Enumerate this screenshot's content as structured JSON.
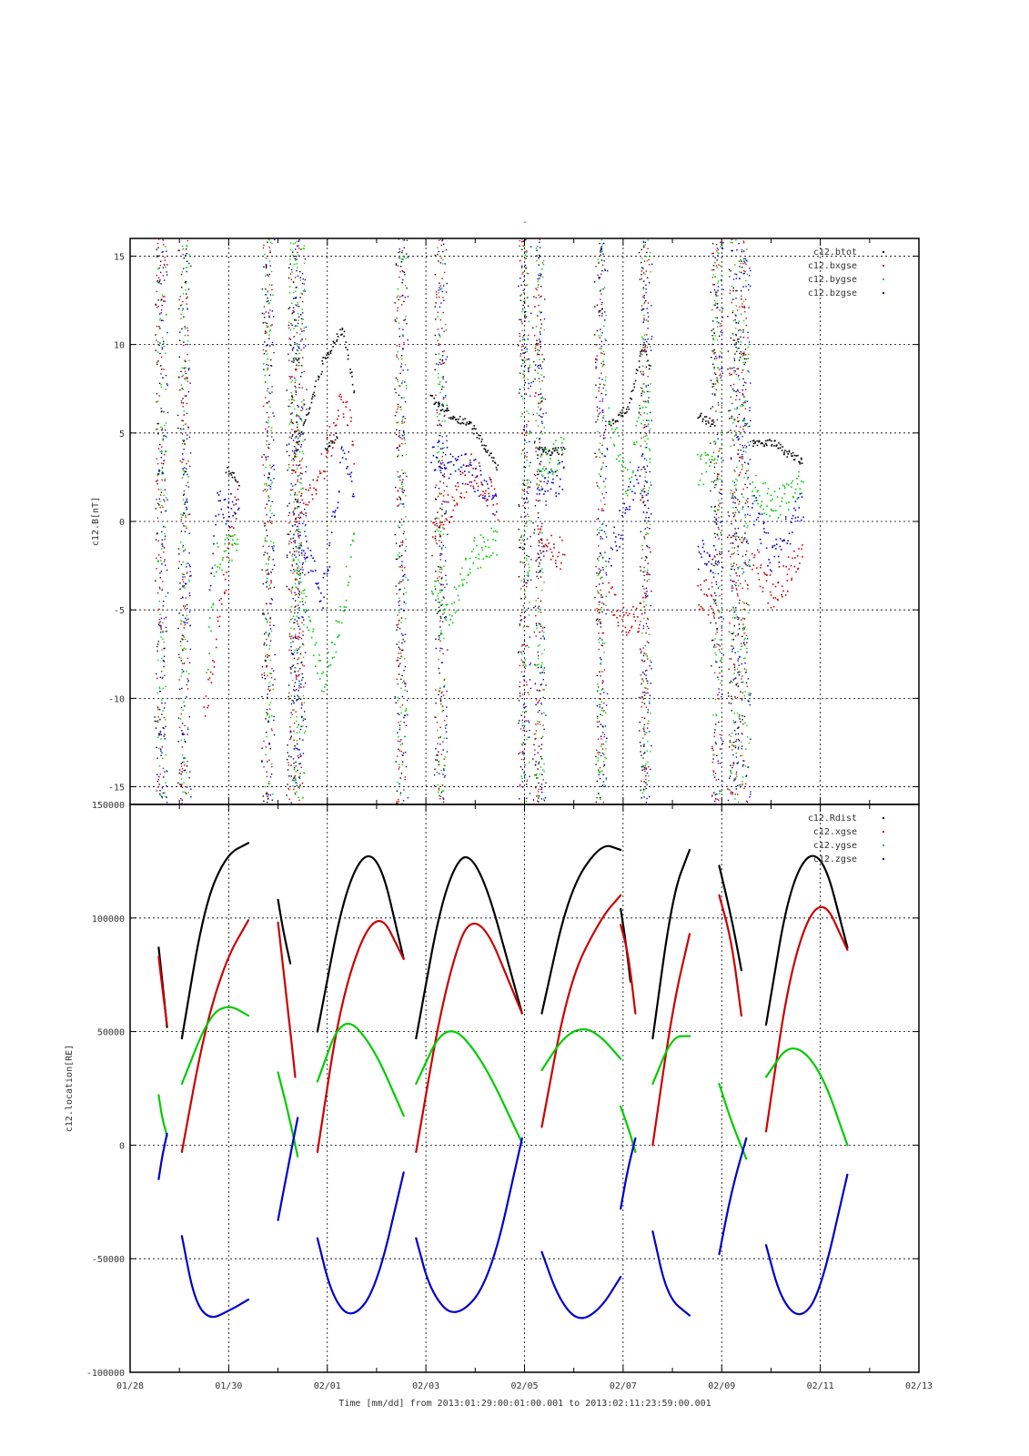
{
  "figure": {
    "title": "-",
    "xlabel": "Time [mm/dd]  from 2013:01:29:00:01:00.001  to  2013:02:11:23:59:00.001",
    "x_tick_labels": [
      "01/28",
      "01/30",
      "02/01",
      "02/03",
      "02/05",
      "02/07",
      "02/09",
      "02/11",
      "02/13"
    ]
  },
  "chart_data": [
    {
      "type": "scatter",
      "ylabel": "c12.B[nT]",
      "xlim": [
        0,
        16
      ],
      "ylim": [
        -16,
        16
      ],
      "x_unit": "days since 01/28 00:00",
      "y_ticks": [
        15,
        10,
        5,
        0,
        -5,
        -10,
        -15
      ],
      "grid": true,
      "legend_placement": "top-right",
      "series": [
        {
          "name": "c12.btot",
          "color": "#000000",
          "segments": [
            {
              "x": [
                1.95,
                2.2
              ],
              "y": [
                3,
                2.2
              ]
            },
            {
              "x": [
                3.3,
                3.9,
                4.3,
                4.55
              ],
              "y": [
                3.5,
                9,
                11,
                7
              ]
            },
            {
              "x": [
                3.95,
                4.2
              ],
              "y": [
                4,
                5
              ]
            },
            {
              "x": [
                6.1,
                6.5,
                6.9,
                7.45
              ],
              "y": [
                7,
                6,
                5.5,
                3
              ]
            },
            {
              "x": [
                8.25,
                8.8
              ],
              "y": [
                4,
                4
              ]
            },
            {
              "x": [
                9.7,
                10.1,
                10.4,
                10.55
              ],
              "y": [
                5.5,
                6.5,
                10,
                8.5
              ]
            },
            {
              "x": [
                11.5,
                11.85
              ],
              "y": [
                6,
                5.5
              ]
            },
            {
              "x": [
                12.6,
                13.0,
                13.65
              ],
              "y": [
                4.5,
                4.5,
                3.3
              ]
            }
          ]
        },
        {
          "name": "c12.bxgse",
          "color": "#cc0000",
          "segments": [
            {
              "x": [
                1.5,
                1.75,
                2.2
              ],
              "y": [
                -11,
                -6,
                2
              ]
            },
            {
              "x": [
                3.3,
                3.9,
                4.3,
                4.55
              ],
              "y": [
                0,
                3,
                7,
                4
              ]
            },
            {
              "x": [
                6.1,
                6.5,
                6.9,
                7.45
              ],
              "y": [
                -1,
                1,
                3,
                1
              ]
            },
            {
              "x": [
                8.25,
                8.8
              ],
              "y": [
                -1,
                -2
              ]
            },
            {
              "x": [
                9.7,
                10.1,
                10.4,
                10.55
              ],
              "y": [
                -4,
                -6,
                -5,
                -1
              ]
            },
            {
              "x": [
                11.5,
                11.85
              ],
              "y": [
                -4,
                -4.5
              ]
            },
            {
              "x": [
                12.6,
                13.0,
                13.65
              ],
              "y": [
                -2,
                -4,
                -2
              ]
            }
          ]
        },
        {
          "name": "c12.bygse",
          "color": "#00cc00",
          "segments": [
            {
              "x": [
                1.55,
                1.75,
                2.2
              ],
              "y": [
                -8,
                -2,
                -1
              ]
            },
            {
              "x": [
                2.7,
                2.8
              ],
              "y": [
                8,
                10
              ]
            },
            {
              "x": [
                3.3,
                3.9,
                4.3,
                4.55
              ],
              "y": [
                -2,
                -9,
                -5,
                0
              ]
            },
            {
              "x": [
                6.1,
                6.5,
                6.9,
                7.45
              ],
              "y": [
                -4,
                -5,
                -2,
                -1
              ]
            },
            {
              "x": [
                8.25,
                8.8
              ],
              "y": [
                3,
                4
              ]
            },
            {
              "x": [
                9.7,
                10.1,
                10.4,
                10.55
              ],
              "y": [
                6,
                2,
                7,
                4
              ]
            },
            {
              "x": [
                11.5,
                11.85
              ],
              "y": [
                3,
                3
              ]
            },
            {
              "x": [
                12.6,
                13.0,
                13.65
              ],
              "y": [
                2,
                1,
                2
              ]
            }
          ]
        },
        {
          "name": "c12.bzgse",
          "color": "#0000cc",
          "segments": [
            {
              "x": [
                1.6,
                1.75,
                2.2
              ],
              "y": [
                -4,
                1,
                0.5
              ]
            },
            {
              "x": [
                3.3,
                3.9,
                4.3,
                4.55
              ],
              "y": [
                0,
                -4,
                4,
                2
              ]
            },
            {
              "x": [
                6.1,
                6.5,
                6.9,
                7.45
              ],
              "y": [
                4,
                3,
                3,
                1
              ]
            },
            {
              "x": [
                8.25,
                8.8
              ],
              "y": [
                2,
                2.5
              ]
            },
            {
              "x": [
                9.7,
                10.1,
                10.4,
                10.55
              ],
              "y": [
                -2,
                1,
                3,
                -1
              ]
            },
            {
              "x": [
                11.5,
                11.85
              ],
              "y": [
                -2,
                -2
              ]
            },
            {
              "x": [
                12.6,
                13.0,
                13.65
              ],
              "y": [
                1,
                -2,
                1
              ]
            }
          ]
        }
      ]
    },
    {
      "type": "line",
      "ylabel": "c12.location[RE]",
      "xlim": [
        0,
        16
      ],
      "ylim": [
        -100000,
        150000
      ],
      "x_unit": "days since 01/28 00:00",
      "y_ticks": [
        150000,
        100000,
        50000,
        0,
        -50000,
        -100000
      ],
      "grid": true,
      "legend_placement": "top-right",
      "series": [
        {
          "name": "c12.Rdist",
          "color": "#000000",
          "segments": [
            {
              "x": [
                0.58,
                0.65,
                0.75
              ],
              "y": [
                87000,
                73000,
                52000
              ]
            },
            {
              "x": [
                1.05,
                1.5,
                1.95,
                2.4
              ],
              "y": [
                47000,
                105000,
                128000,
                133000
              ]
            },
            {
              "x": [
                3.0,
                3.1,
                3.25
              ],
              "y": [
                108000,
                95000,
                80000
              ]
            },
            {
              "x": [
                3.8,
                4.4,
                5.0,
                5.55
              ],
              "y": [
                50000,
                118000,
                133000,
                82000
              ]
            },
            {
              "x": [
                5.8,
                6.4,
                7.0,
                7.95
              ],
              "y": [
                47000,
                118000,
                133000,
                58000
              ]
            },
            {
              "x": [
                8.35,
                8.9,
                9.55,
                9.95
              ],
              "y": [
                58000,
                112000,
                133000,
                130000
              ]
            },
            {
              "x": [
                9.95,
                10.05,
                10.15
              ],
              "y": [
                104000,
                90000,
                72000
              ]
            },
            {
              "x": [
                10.6,
                11.0,
                11.35
              ],
              "y": [
                47000,
                110000,
                130000
              ]
            },
            {
              "x": [
                11.95,
                12.2,
                12.4
              ],
              "y": [
                123000,
                100000,
                77000
              ]
            },
            {
              "x": [
                12.9,
                13.4,
                14.0,
                14.55
              ],
              "y": [
                53000,
                118000,
                133000,
                87000
              ]
            }
          ]
        },
        {
          "name": "c12.xgse",
          "color": "#cc0000",
          "segments": [
            {
              "x": [
                0.58,
                0.65,
                0.75
              ],
              "y": [
                83000,
                70000,
                53000
              ]
            },
            {
              "x": [
                1.05,
                1.5,
                1.95,
                2.4
              ],
              "y": [
                -3000,
                50000,
                82000,
                99000
              ]
            },
            {
              "x": [
                3.0,
                3.2,
                3.35
              ],
              "y": [
                98000,
                60000,
                30000
              ]
            },
            {
              "x": [
                3.8,
                4.3,
                5.0,
                5.55
              ],
              "y": [
                -3000,
                68000,
                106000,
                82000
              ]
            },
            {
              "x": [
                5.8,
                6.4,
                7.0,
                7.95
              ],
              "y": [
                -3000,
                72000,
                108000,
                58000
              ]
            },
            {
              "x": [
                8.35,
                8.9,
                9.55,
                9.95
              ],
              "y": [
                8000,
                72000,
                100000,
                110000
              ]
            },
            {
              "x": [
                9.95,
                10.1,
                10.25
              ],
              "y": [
                97000,
                85000,
                58000
              ]
            },
            {
              "x": [
                10.6,
                11.0,
                11.35
              ],
              "y": [
                0,
                60000,
                93000
              ]
            },
            {
              "x": [
                11.95,
                12.2,
                12.4
              ],
              "y": [
                110000,
                90000,
                57000
              ]
            },
            {
              "x": [
                12.9,
                13.4,
                14.0,
                14.55
              ],
              "y": [
                6000,
                80000,
                112000,
                86000
              ]
            }
          ]
        },
        {
          "name": "c12.ygse",
          "color": "#00cc00",
          "segments": [
            {
              "x": [
                0.58,
                0.65,
                0.75
              ],
              "y": [
                22000,
                12000,
                4000
              ]
            },
            {
              "x": [
                1.05,
                1.6,
                2.0,
                2.4
              ],
              "y": [
                27000,
                57000,
                62000,
                57000
              ]
            },
            {
              "x": [
                3.0,
                3.2,
                3.4
              ],
              "y": [
                32000,
                15000,
                -5000
              ]
            },
            {
              "x": [
                3.8,
                4.3,
                4.9,
                5.55
              ],
              "y": [
                28000,
                58000,
                45000,
                13000
              ]
            },
            {
              "x": [
                5.8,
                6.4,
                7.1,
                7.95
              ],
              "y": [
                27000,
                55000,
                40000,
                1000
              ]
            },
            {
              "x": [
                8.35,
                8.8,
                9.2,
                9.55,
                9.95
              ],
              "y": [
                33000,
                48000,
                52000,
                48000,
                38000
              ]
            },
            {
              "x": [
                9.95,
                10.1,
                10.25
              ],
              "y": [
                17000,
                8000,
                -3000
              ]
            },
            {
              "x": [
                10.6,
                11.0,
                11.35
              ],
              "y": [
                27000,
                48000,
                48000
              ]
            },
            {
              "x": [
                11.95,
                12.2,
                12.5
              ],
              "y": [
                27000,
                10000,
                -6000
              ]
            },
            {
              "x": [
                12.9,
                13.4,
                14.0,
                14.55
              ],
              "y": [
                30000,
                46000,
                34000,
                0
              ]
            }
          ]
        },
        {
          "name": "c12.zgse",
          "color": "#0000cc",
          "segments": [
            {
              "x": [
                0.58,
                0.65,
                0.75
              ],
              "y": [
                -15000,
                -5000,
                5000
              ]
            },
            {
              "x": [
                1.05,
                1.3,
                1.6,
                2.0,
                2.4
              ],
              "y": [
                -40000,
                -68000,
                -77000,
                -73000,
                -68000
              ]
            },
            {
              "x": [
                3.0,
                3.2,
                3.4
              ],
              "y": [
                -33000,
                -10000,
                12000
              ]
            },
            {
              "x": [
                3.8,
                4.1,
                4.5,
                5.0,
                5.55
              ],
              "y": [
                -41000,
                -67000,
                -77000,
                -63000,
                -12000
              ]
            },
            {
              "x": [
                5.8,
                6.1,
                6.6,
                7.3,
                7.95
              ],
              "y": [
                -41000,
                -65000,
                -77000,
                -60000,
                3000
              ]
            },
            {
              "x": [
                8.35,
                8.7,
                9.1,
                9.55,
                9.95
              ],
              "y": [
                -47000,
                -68000,
                -78000,
                -72000,
                -58000
              ]
            },
            {
              "x": [
                9.95,
                10.1,
                10.25
              ],
              "y": [
                -28000,
                -10000,
                3000
              ]
            },
            {
              "x": [
                10.6,
                10.9,
                11.35
              ],
              "y": [
                -38000,
                -67000,
                -75000
              ]
            },
            {
              "x": [
                11.95,
                12.2,
                12.5
              ],
              "y": [
                -48000,
                -20000,
                3000
              ]
            },
            {
              "x": [
                12.9,
                13.2,
                13.6,
                14.0,
                14.55
              ],
              "y": [
                -44000,
                -68000,
                -77000,
                -65000,
                -13000
              ]
            }
          ]
        }
      ]
    }
  ]
}
